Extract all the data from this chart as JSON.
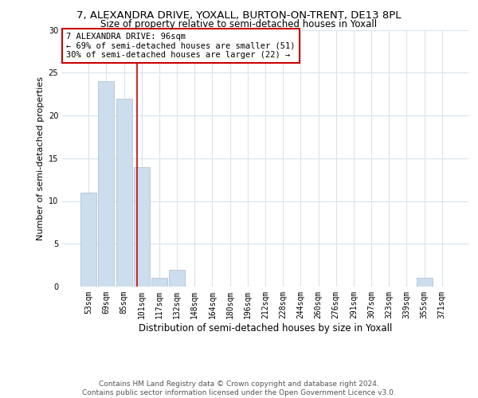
{
  "title": "7, ALEXANDRA DRIVE, YOXALL, BURTON-ON-TRENT, DE13 8PL",
  "subtitle": "Size of property relative to semi-detached houses in Yoxall",
  "xlabel": "Distribution of semi-detached houses by size in Yoxall",
  "ylabel": "Number of semi-detached properties",
  "bin_labels": [
    "53sqm",
    "69sqm",
    "85sqm",
    "101sqm",
    "117sqm",
    "132sqm",
    "148sqm",
    "164sqm",
    "180sqm",
    "196sqm",
    "212sqm",
    "228sqm",
    "244sqm",
    "260sqm",
    "276sqm",
    "291sqm",
    "307sqm",
    "323sqm",
    "339sqm",
    "355sqm",
    "371sqm"
  ],
  "bar_heights": [
    11,
    24,
    22,
    14,
    1,
    2,
    0,
    0,
    0,
    0,
    0,
    0,
    0,
    0,
    0,
    0,
    0,
    0,
    0,
    1,
    0
  ],
  "bar_color": "#ccdded",
  "bar_edge_color": "#aabbcc",
  "grid_color": "#d8e4ec",
  "vline_x": 2.72,
  "vline_color": "#cc0000",
  "annotation_text": "7 ALEXANDRA DRIVE: 96sqm\n← 69% of semi-detached houses are smaller (51)\n30% of semi-detached houses are larger (22) →",
  "annotation_box_color": "#ffffff",
  "annotation_box_edge_color": "#cc0000",
  "ylim": [
    0,
    30
  ],
  "yticks": [
    0,
    5,
    10,
    15,
    20,
    25,
    30
  ],
  "footer_line1": "Contains HM Land Registry data © Crown copyright and database right 2024.",
  "footer_line2": "Contains public sector information licensed under the Open Government Licence v3.0.",
  "title_fontsize": 9.5,
  "subtitle_fontsize": 8.5,
  "xlabel_fontsize": 8.5,
  "ylabel_fontsize": 8,
  "tick_fontsize": 7,
  "annotation_fontsize": 7.5,
  "footer_fontsize": 6.5
}
